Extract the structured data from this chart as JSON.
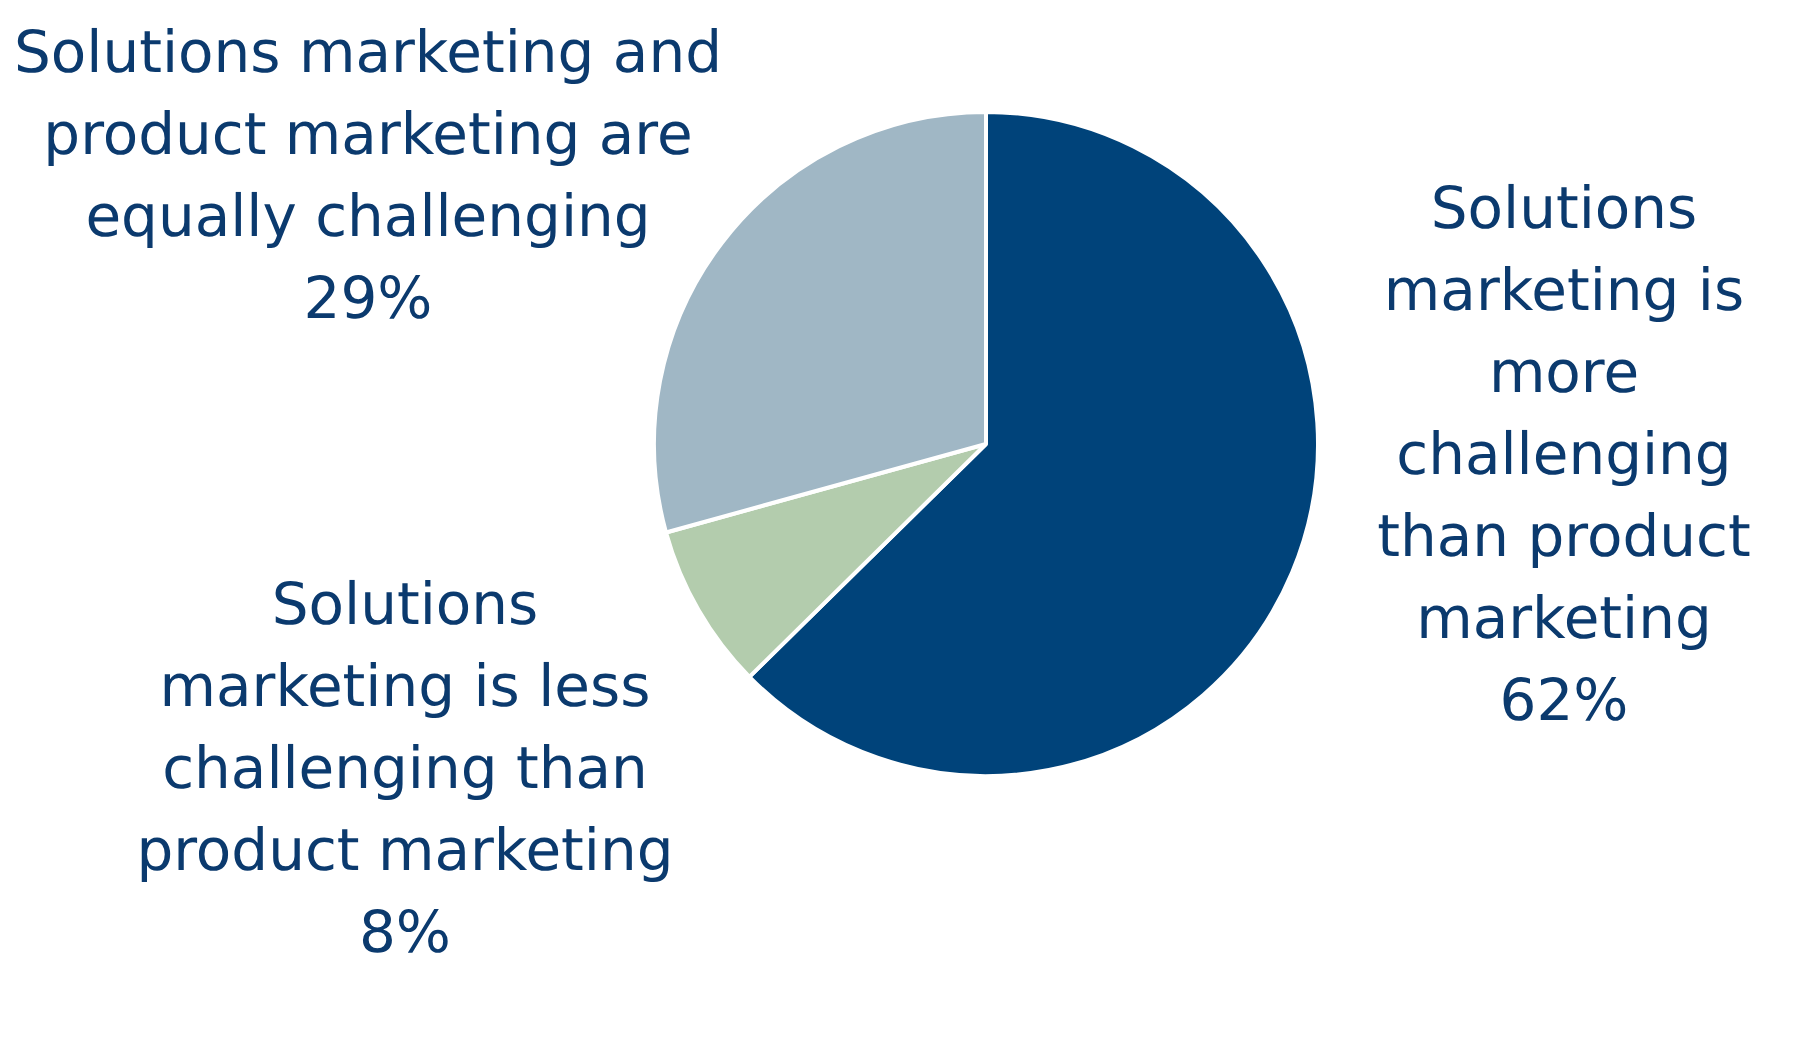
{
  "chart_data": {
    "type": "pie",
    "categories": [
      "Solutions marketing is more challenging than product marketing",
      "Solutions marketing is less challenging than product marketing",
      "Solutions marketing and product marketing are equally challenging"
    ],
    "values": [
      62,
      8,
      29
    ],
    "value_labels": [
      "62%",
      "8%",
      "29%"
    ],
    "colors": [
      "#00437a",
      "#b3ccad",
      "#a0b7c5"
    ],
    "legend": false
  }
}
